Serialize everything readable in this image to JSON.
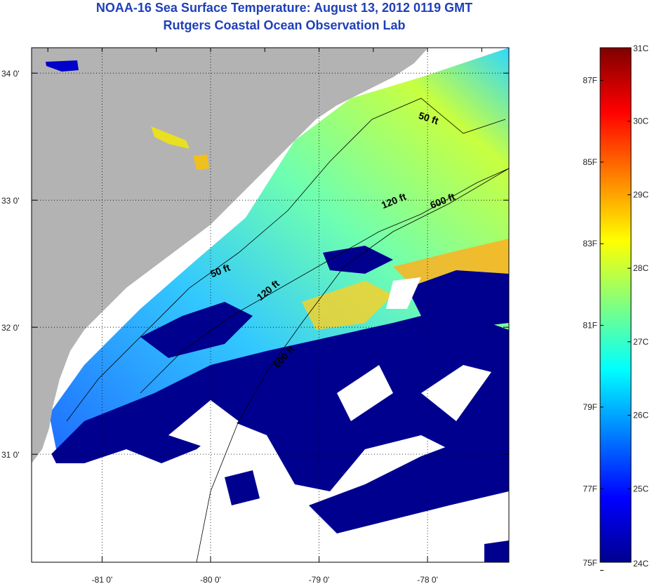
{
  "header": {
    "title": "NOAA-16 Sea Surface Temperature:  August 13, 2012 0119 GMT",
    "subtitle": "Rutgers Coastal Ocean Observation Lab"
  },
  "map": {
    "lon_range": [
      -81.65,
      -77.25
    ],
    "lat_range": [
      30.15,
      34.2
    ],
    "lon_ticks": [
      {
        "value": -81,
        "label": "-81 0'"
      },
      {
        "value": -80,
        "label": "-80 0'"
      },
      {
        "value": -79,
        "label": "-79 0'"
      },
      {
        "value": -78,
        "label": "-78 0'"
      }
    ],
    "lat_ticks": [
      {
        "value": 34,
        "label": "34 0'"
      },
      {
        "value": 33,
        "label": "33 0'"
      },
      {
        "value": 32,
        "label": "32 0'"
      },
      {
        "value": 31,
        "label": "31 0'"
      }
    ],
    "grid": true,
    "colors": {
      "land": "#b3b3b3",
      "cloud": "#00008f",
      "nodata": "#ffffff",
      "grid": "#000000"
    },
    "contour_labels": [
      {
        "text": "50 ft",
        "lon": -78.0,
        "lat": 33.62,
        "angle": 18
      },
      {
        "text": "120 ft",
        "lon": -78.3,
        "lat": 32.97,
        "angle": -22
      },
      {
        "text": "600 ft",
        "lon": -77.85,
        "lat": 32.97,
        "angle": -22
      },
      {
        "text": "50 ft",
        "lon": -79.9,
        "lat": 32.42,
        "angle": -22
      },
      {
        "text": "120 ft",
        "lon": -79.45,
        "lat": 32.27,
        "angle": -40
      },
      {
        "text": "600 ft",
        "lon": -79.3,
        "lat": 31.75,
        "angle": -48
      }
    ]
  },
  "colorbar": {
    "min_c": 24,
    "max_c": 31,
    "celsius_ticks": [
      {
        "value": 31,
        "label": "31C"
      },
      {
        "value": 30,
        "label": "30C"
      },
      {
        "value": 29,
        "label": "29C"
      },
      {
        "value": 28,
        "label": "28C"
      },
      {
        "value": 27,
        "label": "27C"
      },
      {
        "value": 26,
        "label": "26C"
      },
      {
        "value": 25,
        "label": "25C"
      },
      {
        "value": 24,
        "label": "24C"
      }
    ],
    "fahrenheit_ticks": [
      {
        "value": 87,
        "label": "87F"
      },
      {
        "value": 85,
        "label": "85F"
      },
      {
        "value": 83,
        "label": "83F"
      },
      {
        "value": 81,
        "label": "81F"
      },
      {
        "value": 79,
        "label": "79F"
      },
      {
        "value": 77,
        "label": "77F"
      },
      {
        "value": 75,
        "label": "75F"
      }
    ],
    "gradient_colors": [
      "#00008f",
      "#0000ff",
      "#0080ff",
      "#00ffff",
      "#80ff80",
      "#ffff00",
      "#ff8000",
      "#ff0000",
      "#800000"
    ]
  }
}
